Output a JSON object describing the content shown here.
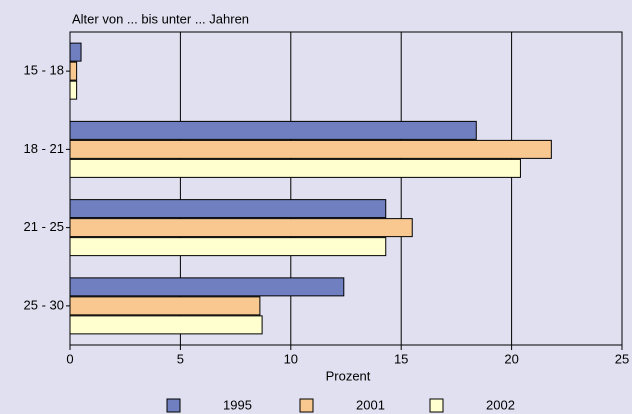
{
  "chart_data": {
    "type": "barh",
    "title": "Alter von ... bis unter ... Jahren",
    "xlabel": "Prozent",
    "categories": [
      "15 - 18",
      "18 - 21",
      "21 - 25",
      "25 - 30"
    ],
    "series": [
      {
        "name": "1995",
        "color": "#6f7fbf",
        "values": [
          0.5,
          18.4,
          14.3,
          12.4
        ]
      },
      {
        "name": "2001",
        "color": "#f8c890",
        "values": [
          0.3,
          21.8,
          15.5,
          8.6
        ]
      },
      {
        "name": "2002",
        "color": "#ffffd0",
        "values": [
          0.3,
          20.4,
          14.3,
          8.7
        ]
      }
    ],
    "xlim": [
      0,
      25
    ],
    "xticks": [
      0,
      5,
      10,
      15,
      20,
      25
    ],
    "grid": true
  }
}
